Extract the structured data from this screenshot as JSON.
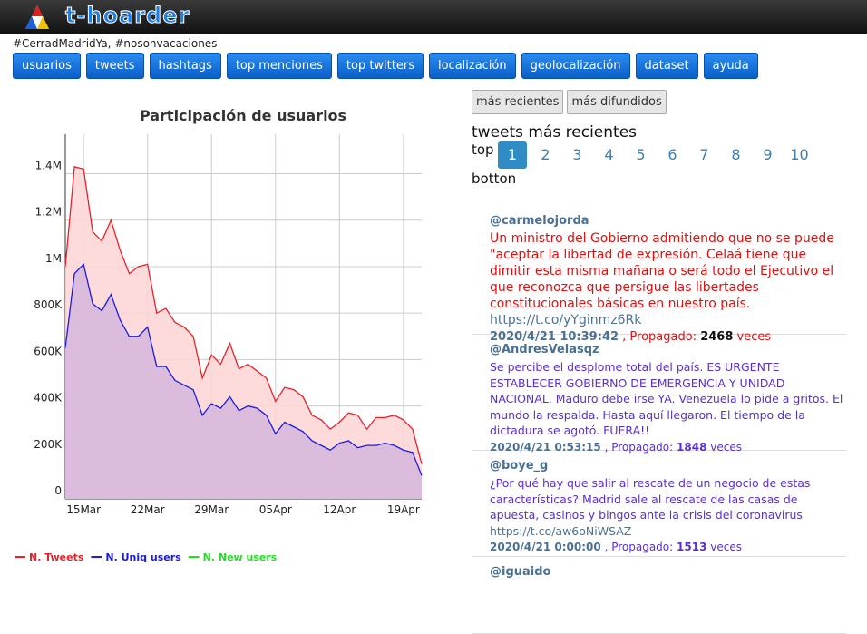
{
  "header": {
    "brand": "t-hoarder"
  },
  "query": "#CerradMadridYa, #nosonvacaciones",
  "nav": [
    "usuarios",
    "tweets",
    "hashtags",
    "top menciones",
    "top twitters",
    "localización",
    "geolocalización",
    "dataset",
    "ayuda"
  ],
  "sort_buttons": [
    "más recientes",
    "más difundidos"
  ],
  "tweets_heading": "tweets más recientes",
  "top_label": "top",
  "pages": [
    1,
    2,
    3,
    4,
    5,
    6,
    7,
    8,
    9,
    10
  ],
  "bottom_label": "botton",
  "propagated_label": ", Propagado:",
  "times_label": "veces",
  "tweets": [
    {
      "user": "@carmelojorda",
      "color": "#e01010",
      "text": "Un ministro del Gobierno admitiendo que no se puede \"aceptar la libertad de expresión. Celaá tiene que dimitir esta misma mañana o será todo el Ejecutivo el que reconozca que persigue las libertades constitucionales básicas en nuestro país.",
      "link": "https://t.co/yYginmz6Rk",
      "date": "2020/4/21 10:39:42",
      "count": 2468
    },
    {
      "user": "@AndresVelasqz",
      "color": "#5a2fd0",
      "text": "Se percibe el desplome total del país. ES URGENTE ESTABLECER GOBIERNO DE EMERGENCIA Y UNIDAD NACIONAL. Maduro debe irse YA. Venezuela lo pide a gritos. El mundo la respalda. Hasta aquí llegaron. El tiempo de la dictadura se agotó. FUERA!!",
      "date": "2020/4/21 0:53:15",
      "count": 1848
    },
    {
      "user": "@boye_g",
      "color": "#5a2fd0",
      "text": "¿Por qué hay que salir al rescate de un negocio de estas características? Madrid sale al rescate de las casas de apuesta, casinos y bingos ante la crisis del coronavirus",
      "link": "https://t.co/aw6oNiWSAZ",
      "date": "2020/4/21 0:00:00",
      "count": 1513
    },
    {
      "user": "@iguaido"
    }
  ],
  "chart_data": {
    "type": "area",
    "title": "Participación de usuarios",
    "categories": [
      null,
      null,
      "15Mar",
      null,
      null,
      null,
      null,
      null,
      null,
      "22Mar",
      null,
      null,
      null,
      null,
      null,
      null,
      "29Mar",
      null,
      null,
      null,
      null,
      null,
      null,
      "05Apr",
      null,
      null,
      null,
      null,
      null,
      null,
      "12Apr",
      null,
      null,
      null,
      null,
      null,
      null,
      "19Apr",
      null,
      null
    ],
    "series": [
      {
        "name": "N. Tweets",
        "color": "#e8202a",
        "fill": "#fdd5d5",
        "values": [
          1000000,
          1430000,
          1420000,
          1150000,
          1110000,
          1200000,
          1070000,
          970000,
          1000000,
          1010000,
          800000,
          820000,
          760000,
          740000,
          700000,
          520000,
          620000,
          580000,
          670000,
          560000,
          580000,
          550000,
          520000,
          420000,
          480000,
          470000,
          440000,
          360000,
          340000,
          300000,
          330000,
          370000,
          360000,
          300000,
          350000,
          350000,
          360000,
          340000,
          300000,
          150000
        ]
      },
      {
        "name": "N. Uniq users",
        "color": "#1a1ae0",
        "fill": "#d6b6dc",
        "values": [
          650000,
          970000,
          1010000,
          840000,
          810000,
          880000,
          770000,
          700000,
          700000,
          740000,
          570000,
          570000,
          510000,
          490000,
          470000,
          360000,
          410000,
          390000,
          440000,
          380000,
          400000,
          390000,
          360000,
          280000,
          330000,
          310000,
          290000,
          250000,
          230000,
          210000,
          240000,
          250000,
          220000,
          230000,
          230000,
          240000,
          230000,
          210000,
          200000,
          100000
        ]
      },
      {
        "name": "N. New users",
        "color": "#22dd22",
        "values": [
          null,
          null,
          null,
          null,
          null,
          null,
          null,
          null,
          null,
          null,
          null,
          null,
          null,
          null,
          null,
          null,
          null,
          null,
          null,
          null,
          null,
          null,
          null,
          null,
          null,
          null,
          null,
          null,
          null,
          null,
          null,
          null,
          null,
          null,
          null,
          null,
          null,
          null,
          null,
          null
        ]
      }
    ],
    "ylim": [
      0,
      1570000
    ],
    "yticks": [
      0,
      {
        "value": 200000,
        "label": "200K"
      },
      {
        "value": 400000,
        "label": "400K"
      },
      {
        "value": 600000,
        "label": "600K"
      },
      {
        "value": 800000,
        "label": "800K"
      },
      {
        "value": 1000000,
        "label": "1M"
      },
      {
        "value": 1200000,
        "label": "1.2M"
      },
      {
        "value": 1400000,
        "label": "1.4M"
      }
    ],
    "grid": true
  }
}
